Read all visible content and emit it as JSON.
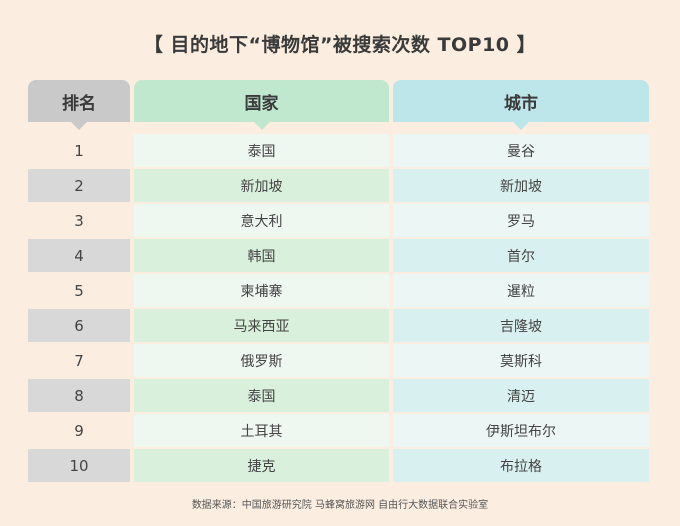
{
  "title": "【 目的地下“博物馆”被搜索次数 TOP10 】",
  "headers": {
    "rank": "排名",
    "country": "国家",
    "city": "城市"
  },
  "rows": [
    {
      "rank": "1",
      "country": "泰国",
      "city": "曼谷"
    },
    {
      "rank": "2",
      "country": "新加坡",
      "city": "新加坡"
    },
    {
      "rank": "3",
      "country": "意大利",
      "city": "罗马"
    },
    {
      "rank": "4",
      "country": "韩国",
      "city": "首尔"
    },
    {
      "rank": "5",
      "country": "柬埔寨",
      "city": "暹粒"
    },
    {
      "rank": "6",
      "country": "马来西亚",
      "city": "吉隆坡"
    },
    {
      "rank": "7",
      "country": "俄罗斯",
      "city": "莫斯科"
    },
    {
      "rank": "8",
      "country": "泰国",
      "city": "清迈"
    },
    {
      "rank": "9",
      "country": "土耳其",
      "city": "伊斯坦布尔"
    },
    {
      "rank": "10",
      "country": "捷克",
      "city": "布拉格"
    }
  ],
  "source": "数据来源：中国旅游研究院  马蜂窝旅游网 自由行大数据联合实验室"
}
